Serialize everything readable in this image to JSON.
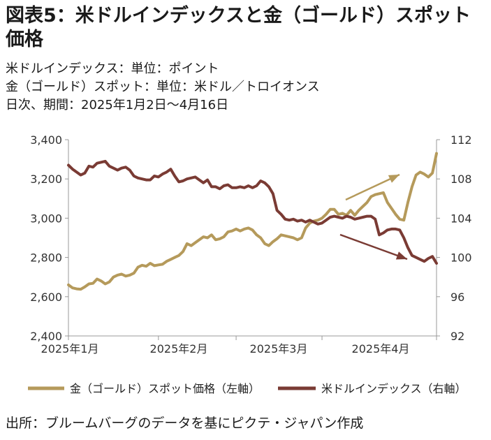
{
  "title": "図表5：米ドルインデックスと金（ゴールド）スポット価格",
  "subtitles": [
    "米ドルインデックス：単位：ポイント",
    "金（ゴールド）スポット：単位：米ドル／トロイオンス",
    "日次、期間：2025年1月2日～4月16日"
  ],
  "source": "出所：ブルームバーグのデータを基にピクテ・ジャパン作成",
  "chart_data": {
    "type": "line",
    "x_ticks": [
      "2025年1月",
      "2025年2月",
      "2025年3月",
      "2025年4月"
    ],
    "y_left": {
      "ticks": [
        "2,400",
        "2,600",
        "2,800",
        "3,000",
        "3,200",
        "3,400"
      ],
      "range": [
        2400,
        3400
      ]
    },
    "y_right": {
      "ticks": [
        "92",
        "96",
        "100",
        "104",
        "108",
        "112"
      ],
      "range": [
        92,
        112
      ]
    },
    "grid": false,
    "legend": "bottom",
    "series": [
      {
        "name": "金（ゴールド）スポット価格（左軸）",
        "axis": "left",
        "color": "#b59a5b",
        "values": [
          2660,
          2645,
          2640,
          2638,
          2650,
          2665,
          2668,
          2690,
          2680,
          2665,
          2675,
          2700,
          2710,
          2715,
          2705,
          2710,
          2720,
          2750,
          2760,
          2755,
          2770,
          2758,
          2762,
          2765,
          2780,
          2790,
          2800,
          2810,
          2830,
          2870,
          2860,
          2875,
          2890,
          2905,
          2900,
          2915,
          2890,
          2895,
          2905,
          2930,
          2935,
          2945,
          2935,
          2945,
          2950,
          2940,
          2915,
          2900,
          2870,
          2860,
          2880,
          2895,
          2915,
          2910,
          2905,
          2900,
          2890,
          2900,
          2950,
          2975,
          2985,
          2990,
          3000,
          3020,
          3045,
          3045,
          3020,
          3025,
          3015,
          3040,
          3015,
          3040,
          3060,
          3080,
          3110,
          3120,
          3125,
          3130,
          3080,
          3050,
          3020,
          2995,
          2990,
          3080,
          3160,
          3220,
          3235,
          3225,
          3210,
          3230,
          3330
        ]
      },
      {
        "name": "米ドルインデックス（右軸）",
        "axis": "right",
        "color": "#7a3b34",
        "values": [
          109.4,
          109.0,
          108.7,
          108.4,
          108.6,
          109.3,
          109.2,
          109.6,
          109.7,
          109.8,
          109.3,
          109.1,
          108.9,
          109.1,
          109.2,
          108.9,
          108.3,
          108.1,
          108.0,
          107.9,
          107.9,
          108.3,
          108.2,
          108.5,
          108.7,
          109.0,
          108.3,
          107.7,
          107.8,
          108.0,
          108.1,
          108.2,
          107.9,
          107.6,
          107.9,
          107.2,
          107.2,
          107.0,
          107.3,
          107.4,
          107.1,
          107.1,
          107.2,
          107.1,
          107.3,
          107.1,
          107.3,
          107.8,
          107.6,
          107.2,
          106.5,
          104.8,
          104.4,
          103.9,
          103.8,
          103.9,
          103.7,
          103.8,
          103.6,
          103.8,
          103.6,
          103.4,
          103.5,
          103.8,
          104.1,
          104.2,
          104.1,
          104.0,
          104.2,
          104.1,
          103.9,
          104.0,
          104.1,
          104.2,
          104.2,
          103.9,
          102.3,
          102.5,
          102.8,
          102.9,
          102.9,
          102.8,
          102.0,
          101.0,
          100.2,
          100.0,
          99.8,
          99.6,
          99.9,
          100.1,
          99.4
        ]
      }
    ],
    "annotations": [
      {
        "type": "arrow",
        "target_axis": "left",
        "label": ""
      },
      {
        "type": "arrow",
        "target_axis": "right",
        "label": ""
      }
    ]
  }
}
